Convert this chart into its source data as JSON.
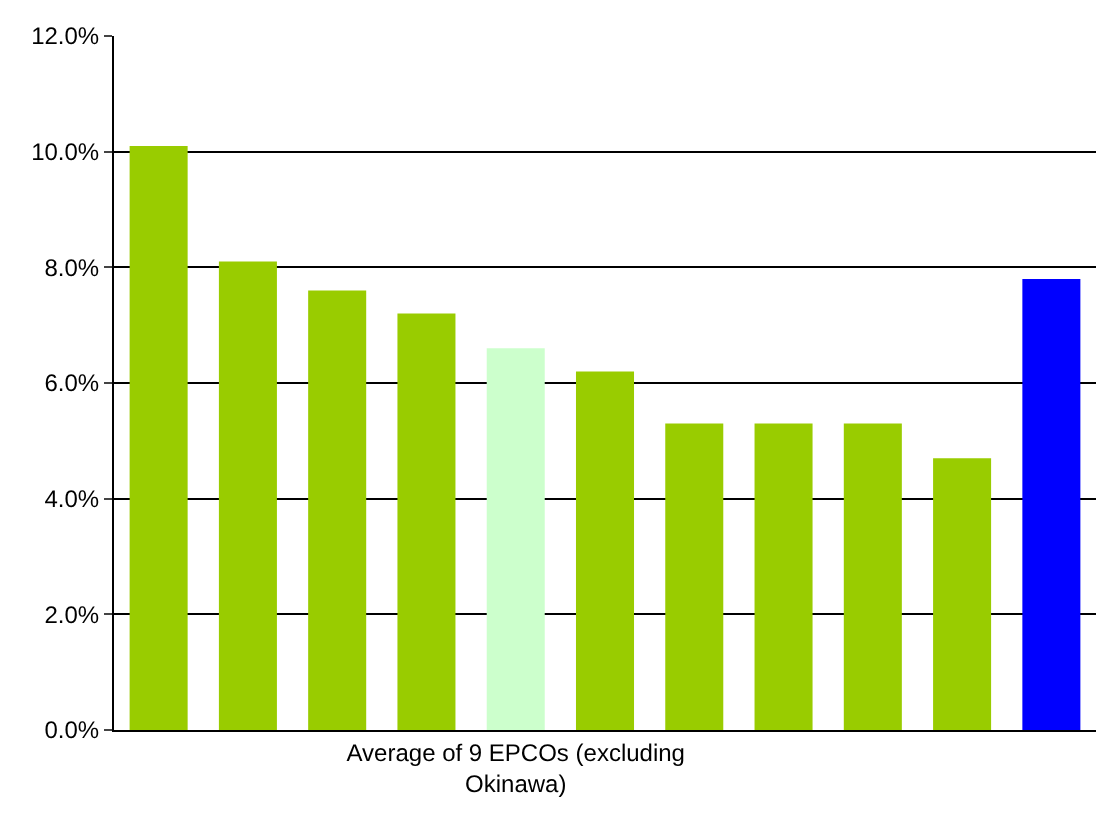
{
  "chart_data": {
    "type": "bar",
    "categories": [
      null,
      null,
      null,
      null,
      "Average of 9 EPCOs (excluding Okinawa)",
      null,
      null,
      null,
      null,
      null,
      null
    ],
    "values": [
      10.1,
      8.1,
      7.6,
      7.2,
      6.6,
      6.2,
      5.3,
      5.3,
      5.3,
      4.7,
      7.8
    ],
    "colors": [
      "#99cc00",
      "#99cc00",
      "#99cc00",
      "#99cc00",
      "#ccffcc",
      "#99cc00",
      "#99cc00",
      "#99cc00",
      "#99cc00",
      "#99cc00",
      "#0000ff"
    ],
    "ylim": [
      0,
      12
    ],
    "yticks": [
      {
        "value": 0,
        "label": "0.0%"
      },
      {
        "value": 2,
        "label": "2.0%"
      },
      {
        "value": 4,
        "label": "4.0%"
      },
      {
        "value": 6,
        "label": "6.0%"
      },
      {
        "value": 8,
        "label": "8.0%"
      },
      {
        "value": 10,
        "label": "10.0%"
      },
      {
        "value": 12,
        "label": "12.0%"
      }
    ],
    "grid": "y"
  }
}
